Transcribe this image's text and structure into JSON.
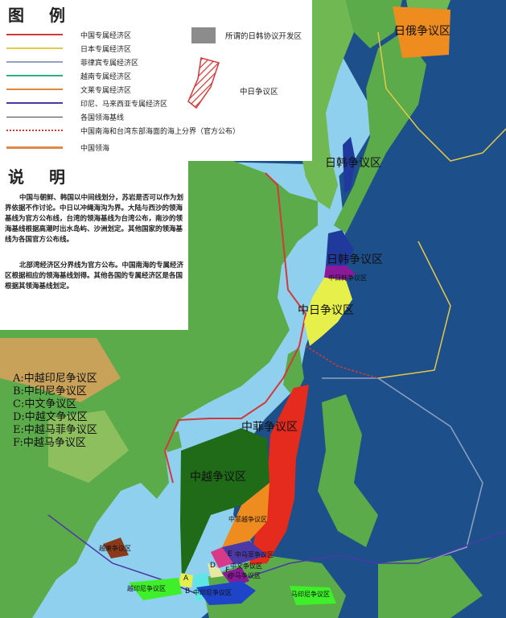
{
  "legend": {
    "title": "图 例",
    "items": [
      {
        "label": "中国专属经济区",
        "color": "#d23a3a"
      },
      {
        "label": "日本专属经济区",
        "color": "#e5c84a"
      },
      {
        "label": "菲律宾专属经济区",
        "color": "#8fa2c0"
      },
      {
        "label": "越南专属经济区",
        "color": "#2fae86"
      },
      {
        "label": "文莱专属经济区",
        "color": "#e0883a"
      },
      {
        "label": "印尼、马来西亚专属经济区",
        "color": "#4b3aa5"
      },
      {
        "label": "各国领海基线",
        "color": "#444444"
      },
      {
        "label": "中国南海和台湾东部海面的海上分界（官方公布）",
        "color": "#d23a3a"
      },
      {
        "label": "中国领海",
        "color": "#e08a4a"
      }
    ],
    "gray_zone_label": "所谓的日韩协议开发区",
    "hatch_zone_label": "中日争议区"
  },
  "notes": {
    "title": "说 明",
    "paragraph1": "中国与朝鲜、韩国以中间线划分，苏岩是否可以作为划界依据不作讨论。中日以冲绳海沟为界。大陆与西沙的领海基线为官方公布线，台湾的领海基线为台湾公布，南沙的领海基线根据高潮时出水岛屿、沙洲划定。其他国家的领海基线为各国官方公布线。",
    "paragraph2": "北部湾经济区分界线为官方公布。中国南海的专属经济区根据相应的领海基线划得。其他各国的专属经济区是各国根据其领海基线划定。"
  },
  "region_key": [
    "A:中越印尼争议区",
    "B:中印尼争议区",
    "C:中文争议区",
    "D:中越文争议区",
    "E:中越马菲争议区",
    "F:中越马争议区"
  ],
  "map_labels": {
    "ri_e": "日俄争议区",
    "ri_han_1": "日韩争议区",
    "ri_han_2": "日韩争议区",
    "zhong_ri_han": "中日韩争议区",
    "zhong_ri": "中日争议区",
    "zhong_fei": "中菲争议区",
    "zhong_yue": "中越争议区",
    "zhong_fei_yue": "中菲越争议区",
    "yue_jian": "越柬争议区",
    "yue_yin_ni": "越印尼争议区",
    "zhong_yin_ni": "中印尼争议区",
    "ma_yin_ni": "马印尼争议区",
    "zhong_ma_fei": "中马菲争议区",
    "zhong_wen": "中文争议区",
    "zhong_ma": "中马争议区",
    "letter_a": "A",
    "letter_b": "B",
    "letter_c": "C",
    "letter_d": "D",
    "letter_e": "E",
    "letter_f": "F"
  },
  "colors": {
    "ocean_deep": "#1d4f8a",
    "ocean_shelf": "#8fd0ef",
    "land_low": "#5cab4a",
    "land_high": "#c9a25a",
    "zone_orange": "#ef8c1f",
    "zone_navy": "#1f3a9c",
    "zone_yellow": "#e7f04a",
    "zone_red": "#e52a1e",
    "zone_darkgreen": "#1f6b18",
    "zone_purple": "#8a1a9a",
    "zone_cyan": "#5ee6e6",
    "zone_lime": "#3fef2a",
    "zone_blue": "#1e45c8",
    "zone_pink": "#d83a8a"
  }
}
